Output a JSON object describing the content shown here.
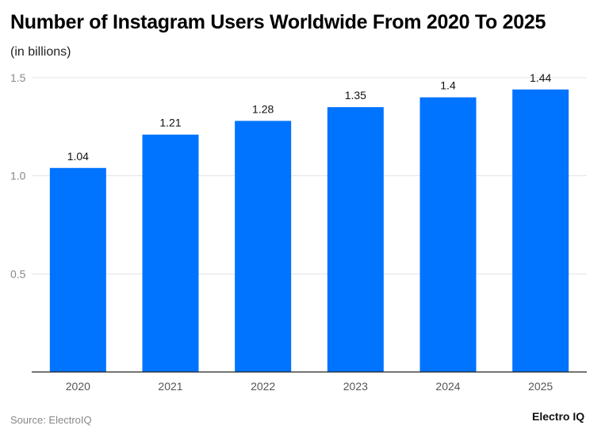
{
  "chart_data": {
    "type": "bar",
    "title": "Number of Instagram Users Worldwide From 2020 To 2025",
    "subtitle": "(in billions)",
    "categories": [
      "2020",
      "2021",
      "2022",
      "2023",
      "2024",
      "2025"
    ],
    "values": [
      1.04,
      1.21,
      1.28,
      1.35,
      1.4,
      1.44
    ],
    "data_labels": [
      "1.04",
      "1.21",
      "1.28",
      "1.35",
      "1.4",
      "1.44"
    ],
    "yticks": [
      0.5,
      1.0,
      1.5
    ],
    "ytick_labels": [
      "0.5",
      "1.0",
      "1.5"
    ],
    "ylim": [
      0,
      1.5
    ],
    "grid": true,
    "bar_color": "#0073ff",
    "xlabel": "",
    "ylabel": ""
  },
  "source": "Source: ElectroIQ",
  "brand": "Electro IQ"
}
